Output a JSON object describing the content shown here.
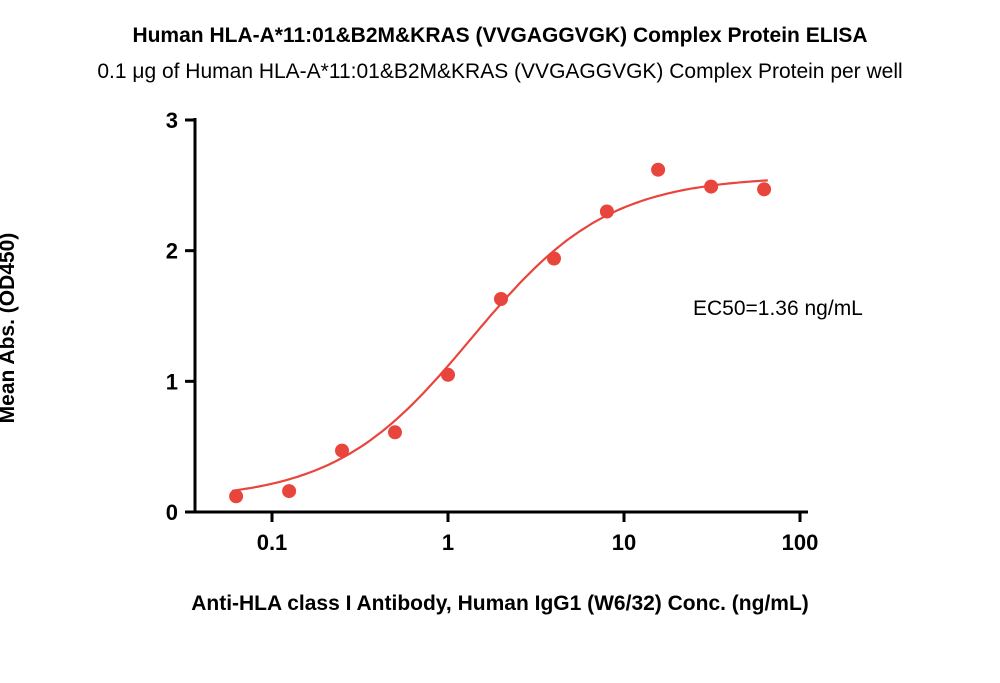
{
  "chart_data": {
    "type": "scatter",
    "title": "Human HLA-A*11:01&B2M&KRAS (VVGAGGVGK) Complex Protein ELISA",
    "subtitle": "0.1 μg of Human HLA-A*11:01&B2M&KRAS (VVGAGGVGK) Complex Protein per well",
    "xlabel": "Anti-HLA class I Antibody, Human IgG1 (W6/32) Conc. (ng/mL)",
    "ylabel": "Mean Abs. (OD450)",
    "x_scale": "log",
    "x": [
      0.0625,
      0.125,
      0.25,
      0.5,
      1,
      2,
      4,
      8,
      15.63,
      31.25,
      62.5
    ],
    "y": [
      0.12,
      0.16,
      0.47,
      0.61,
      1.05,
      1.63,
      1.94,
      2.3,
      2.62,
      2.49,
      2.47
    ],
    "x_ticks": [
      0.1,
      1,
      10,
      100
    ],
    "x_tick_labels": [
      "0.1",
      "1",
      "10",
      "100"
    ],
    "y_ticks": [
      0,
      1,
      2,
      3
    ],
    "y_tick_labels": [
      "0",
      "1",
      "2",
      "3"
    ],
    "xlim": [
      0.043,
      110
    ],
    "ylim": [
      0,
      3
    ],
    "grid": false,
    "legend": "none",
    "ec50_label": "EC50=1.36 ng/mL",
    "fit": {
      "model": "4PL",
      "bottom": 0.09,
      "top": 2.57,
      "ec50": 1.36,
      "hill": 1.12
    },
    "point_color": "#e8453c",
    "line_color": "#e8453c",
    "axis_color": "#000000"
  }
}
